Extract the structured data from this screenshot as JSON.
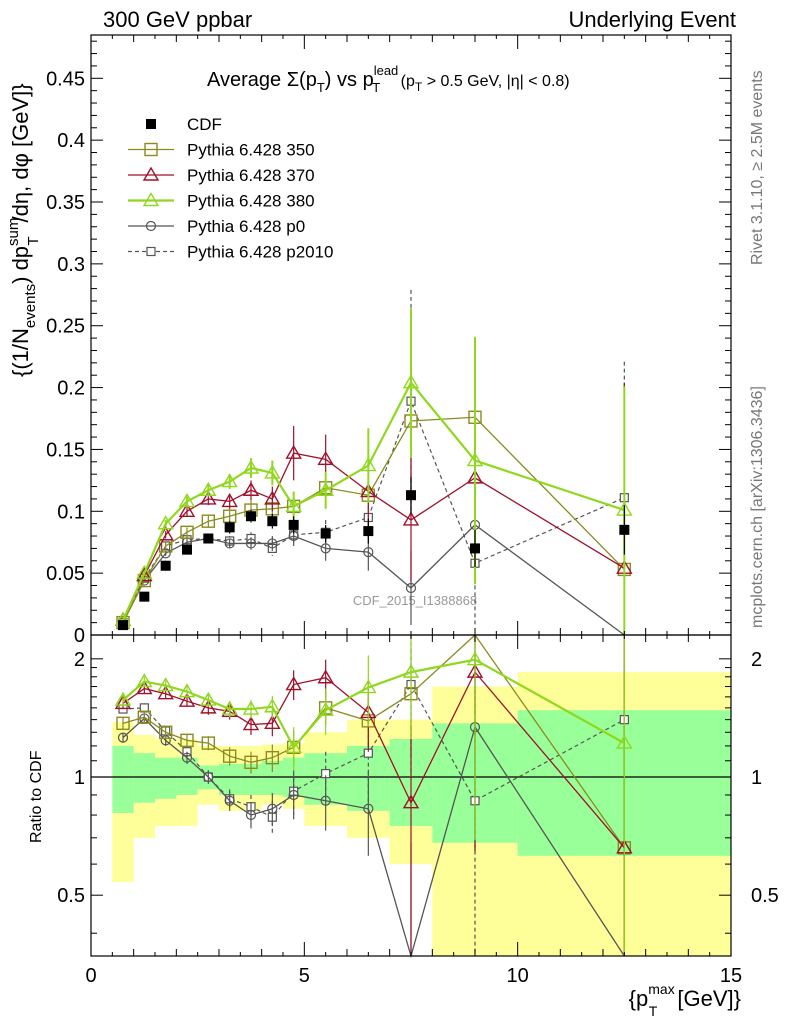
{
  "header": {
    "left": "300 GeV ppbar",
    "right": "Underlying Event"
  },
  "side_labels": {
    "rivet": "Rivet 3.1.10, ≥ 2.5M events",
    "mcplots": "mcplots.cern.ch [arXiv:1306.3436]"
  },
  "watermark": "CDF_2015_I1388868",
  "title": {
    "prefix": "Average ",
    "sigma": "Σ(p",
    "sub_t": "T",
    "mid": ") vs p",
    "sup_lead": "lead",
    "sub_t2": "T",
    "suffix": " (p",
    "sub_t3": "T",
    "cuts": " > 0.5 GeV, |η| < 0.8)"
  },
  "ylabel_main": "{(1/N_events) dp_T^sum/dη, dφ [GeV]}",
  "ylabel_main_parts": {
    "a": "{(1/N",
    "b": "events",
    "c": ") dp",
    "d": "sum",
    "e": "T",
    "f": "/dη, dφ [GeV]}"
  },
  "ylabel_ratio": "Ratio to CDF",
  "xlabel": {
    "a": "{p",
    "sup": "max",
    "sub": "T",
    "b": " [GeV]}"
  },
  "colors": {
    "cdf": "#000000",
    "p350": "#8b8b1e",
    "p370": "#a0102a",
    "p380": "#8fd81e",
    "p0": "#555555",
    "p2010": "#555555",
    "band_inner": "#99ff99",
    "band_outer": "#ffff99"
  },
  "chart_data": [
    {
      "type": "scatter",
      "panel": "main",
      "xlim": [
        0,
        15
      ],
      "ylim": [
        0,
        0.485
      ],
      "yticks": [
        0,
        0.05,
        0.1,
        0.15,
        0.2,
        0.25,
        0.3,
        0.35,
        0.4,
        0.45
      ],
      "ytick_labels": [
        "0",
        "0.05",
        "0.1",
        "0.15",
        "0.2",
        "0.25",
        "0.3",
        "0.35",
        "0.4",
        "0.45"
      ],
      "legend_position": "top-left",
      "x": [
        0.75,
        1.25,
        1.75,
        2.25,
        2.75,
        3.25,
        3.75,
        4.25,
        4.75,
        5.5,
        6.5,
        7.5,
        9.0,
        12.5
      ],
      "series": [
        {
          "name": "CDF",
          "style": "data",
          "y": [
            0.008,
            0.031,
            0.056,
            0.069,
            0.078,
            0.087,
            0.096,
            0.092,
            0.089,
            0.082,
            0.084,
            0.113,
            0.07,
            0.085
          ],
          "err": [
            0.002,
            0.003,
            0.004,
            0.004,
            0.004,
            0.005,
            0.005,
            0.006,
            0.007,
            0.007,
            0.01,
            0.015,
            0.015,
            0.02
          ]
        },
        {
          "name": "Pythia 6.428 350",
          "style": "square",
          "y": [
            0.01,
            0.044,
            0.072,
            0.083,
            0.092,
            0.096,
            0.101,
            0.102,
            0.104,
            0.119,
            0.113,
            0.173,
            0.176,
            0.053
          ],
          "err": [
            0.001,
            0.002,
            0.003,
            0.004,
            0.005,
            0.006,
            0.008,
            0.01,
            0.012,
            0.015,
            0.02,
            0.05,
            0.065,
            0.15
          ]
        },
        {
          "name": "Pythia 6.428 370",
          "style": "triangle",
          "y": [
            0.012,
            0.048,
            0.081,
            0.1,
            0.11,
            0.108,
            0.117,
            0.11,
            0.147,
            0.142,
            0.116,
            0.093,
            0.127,
            0.054
          ],
          "err": [
            0.001,
            0.002,
            0.003,
            0.004,
            0.005,
            0.006,
            0.008,
            0.01,
            0.022,
            0.02,
            0.03,
            0.05,
            0.08,
            0.15
          ]
        },
        {
          "name": "Pythia 6.428 380",
          "style": "triangle",
          "y": [
            0.012,
            0.05,
            0.09,
            0.108,
            0.117,
            0.124,
            0.135,
            0.131,
            0.104,
            0.117,
            0.137,
            0.204,
            0.141,
            0.101
          ],
          "err": [
            0.001,
            0.002,
            0.003,
            0.004,
            0.005,
            0.006,
            0.008,
            0.01,
            0.012,
            0.015,
            0.03,
            0.06,
            0.1,
            0.1
          ]
        },
        {
          "name": "Pythia 6.428 p0",
          "style": "circle",
          "y": [
            0.01,
            0.044,
            0.066,
            0.075,
            0.078,
            0.074,
            0.074,
            0.074,
            0.08,
            0.07,
            0.067,
            0.038,
            0.089,
            0.0
          ],
          "err": [
            0.001,
            0.002,
            0.002,
            0.003,
            0.003,
            0.004,
            0.005,
            0.006,
            0.008,
            0.01,
            0.015,
            0.03,
            0.04,
            0.0
          ]
        },
        {
          "name": "Pythia 6.428 p2010",
          "style": "open-square-dashed",
          "y": [
            0.01,
            0.046,
            0.072,
            0.077,
            0.078,
            0.076,
            0.078,
            0.07,
            0.081,
            0.083,
            0.095,
            0.189,
            0.058,
            0.111
          ],
          "err": [
            0.001,
            0.002,
            0.002,
            0.003,
            0.003,
            0.004,
            0.005,
            0.006,
            0.008,
            0.01,
            0.02,
            0.09,
            0.05,
            0.11
          ]
        }
      ]
    },
    {
      "type": "line",
      "panel": "ratio",
      "xlim": [
        0,
        15
      ],
      "ylim": [
        0.35,
        2.3
      ],
      "yticks": [
        0.5,
        1,
        2
      ],
      "ytick_labels": [
        "0.5",
        "1",
        "2"
      ],
      "xticks": [
        0,
        5,
        10,
        15
      ],
      "xtick_labels": [
        "0",
        "5",
        "10",
        "15"
      ],
      "reference_line": 1,
      "x": [
        0.75,
        1.25,
        1.75,
        2.25,
        2.75,
        3.25,
        3.75,
        4.25,
        4.75,
        5.5,
        6.5,
        7.5,
        9.0,
        12.5
      ],
      "band_edges": [
        0.5,
        1.0,
        1.5,
        2.0,
        2.5,
        3.0,
        3.5,
        4.0,
        4.5,
        5.0,
        6.0,
        7.0,
        8.0,
        10.0,
        15.0
      ],
      "band_inner": [
        [
          0.81,
          1.2
        ],
        [
          0.86,
          1.15
        ],
        [
          0.88,
          1.12
        ],
        [
          0.9,
          1.12
        ],
        [
          0.93,
          1.07
        ],
        [
          0.9,
          1.08
        ],
        [
          0.9,
          1.08
        ],
        [
          0.9,
          1.1
        ],
        [
          0.89,
          1.12
        ],
        [
          0.85,
          1.15
        ],
        [
          0.82,
          1.2
        ],
        [
          0.75,
          1.25
        ],
        [
          0.68,
          1.37
        ],
        [
          0.63,
          1.48
        ]
      ],
      "band_outer": [
        [
          0.54,
          1.38
        ],
        [
          0.7,
          1.28
        ],
        [
          0.75,
          1.25
        ],
        [
          0.75,
          1.25
        ],
        [
          0.85,
          1.2
        ],
        [
          0.82,
          1.2
        ],
        [
          0.82,
          1.2
        ],
        [
          0.85,
          1.21
        ],
        [
          0.83,
          1.22
        ],
        [
          0.75,
          1.3
        ],
        [
          0.7,
          1.4
        ],
        [
          0.6,
          1.4
        ],
        [
          0.35,
          1.7
        ],
        [
          0.35,
          1.85
        ]
      ],
      "series": [
        {
          "name": "Pythia 6.428 350",
          "style": "square",
          "y": [
            1.37,
            1.42,
            1.3,
            1.24,
            1.22,
            1.13,
            1.09,
            1.12,
            1.19,
            1.5,
            1.39,
            1.63,
            2.33,
            0.66
          ],
          "err": [
            0.05,
            0.05,
            0.04,
            0.05,
            0.05,
            0.06,
            0.07,
            0.09,
            0.12,
            0.15,
            0.2,
            0.5,
            0.9,
            1.8
          ]
        },
        {
          "name": "Pythia 6.428 370",
          "style": "triangle",
          "y": [
            1.54,
            1.68,
            1.63,
            1.56,
            1.5,
            1.47,
            1.36,
            1.37,
            1.72,
            1.79,
            1.46,
            0.86,
            1.85,
            0.66
          ],
          "err": [
            0.05,
            0.05,
            0.05,
            0.05,
            0.06,
            0.07,
            0.08,
            0.1,
            0.15,
            0.2,
            0.3,
            0.5,
            1.2,
            1.8
          ]
        },
        {
          "name": "Pythia 6.428 380",
          "style": "triangle",
          "y": [
            1.57,
            1.75,
            1.71,
            1.65,
            1.57,
            1.49,
            1.49,
            1.51,
            1.19,
            1.48,
            1.69,
            1.85,
            1.99,
            1.22
          ],
          "err": [
            0.05,
            0.05,
            0.05,
            0.05,
            0.06,
            0.07,
            0.08,
            0.1,
            0.15,
            0.2,
            0.35,
            0.6,
            1.3,
            1.5
          ]
        },
        {
          "name": "Pythia 6.428 p0",
          "style": "circle",
          "y": [
            1.26,
            1.41,
            1.24,
            1.12,
            1.0,
            0.87,
            0.8,
            0.83,
            0.9,
            0.87,
            0.83,
            0.28,
            1.34,
            0.0
          ],
          "err": [
            0.03,
            0.04,
            0.04,
            0.04,
            0.04,
            0.05,
            0.06,
            0.08,
            0.12,
            0.14,
            0.2,
            0.4,
            0.7,
            0.0
          ]
        },
        {
          "name": "Pythia 6.428 p2010",
          "style": "open-square-dashed",
          "y": [
            1.49,
            1.5,
            1.31,
            1.16,
            1.0,
            0.88,
            0.84,
            0.79,
            0.92,
            1.02,
            1.15,
            1.72,
            0.87,
            1.4
          ],
          "err": [
            0.03,
            0.04,
            0.04,
            0.04,
            0.04,
            0.05,
            0.06,
            0.08,
            0.12,
            0.14,
            0.3,
            0.7,
            0.8,
            1.3
          ]
        }
      ]
    }
  ]
}
